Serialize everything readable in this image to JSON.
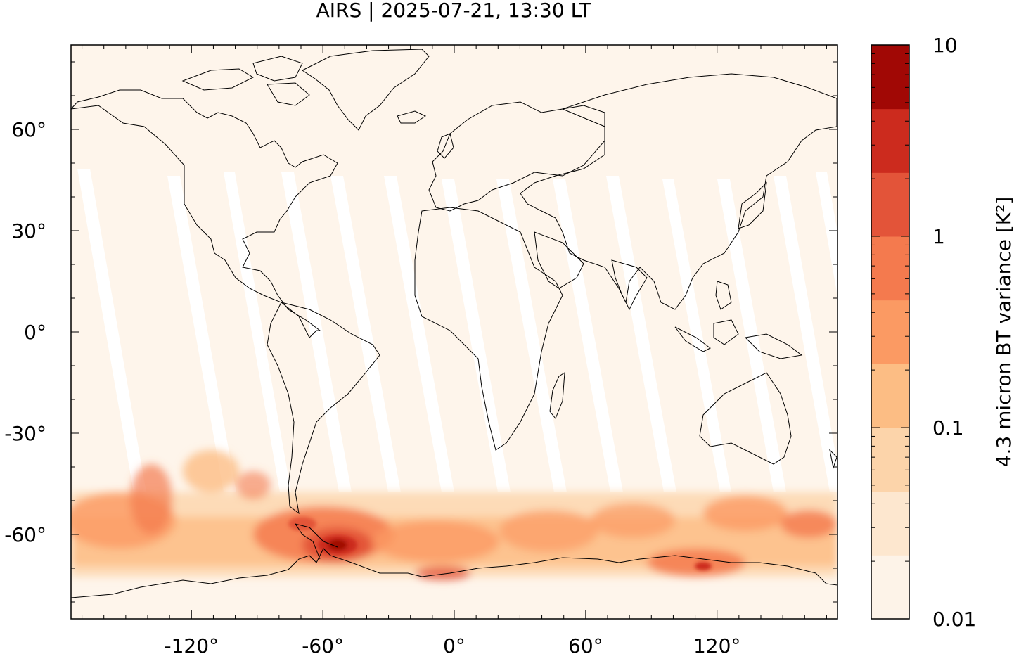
{
  "title": "AIRS | 2025-07-21, 13:30 LT",
  "map": {
    "x_ticks": [
      "-120°",
      "-60°",
      "0°",
      "60°",
      "120°"
    ],
    "x_tick_values": [
      -120,
      -60,
      0,
      60,
      120
    ],
    "y_ticks": [
      "60°",
      "30°",
      "0°",
      "-30°",
      "-60°"
    ],
    "y_tick_values": [
      60,
      30,
      0,
      -30,
      -60
    ],
    "lon_range": [
      -175,
      175
    ],
    "lat_range": [
      -85,
      85
    ],
    "background_color": "#fef5eb",
    "coastline_color": "#000000"
  },
  "colorbar": {
    "label": "4.3 micron BT variance [K²]",
    "tick_labels": [
      "10",
      "1",
      "0.1",
      "0.01"
    ],
    "tick_values": [
      10,
      1,
      0.1,
      0.01
    ],
    "scale": "log",
    "colors": [
      "#fdf3e8",
      "#fde7cf",
      "#fcd4aa",
      "#fcbd84",
      "#fb9a63",
      "#f47a4e",
      "#e35439",
      "#cc2b1e",
      "#a10805"
    ]
  }
}
